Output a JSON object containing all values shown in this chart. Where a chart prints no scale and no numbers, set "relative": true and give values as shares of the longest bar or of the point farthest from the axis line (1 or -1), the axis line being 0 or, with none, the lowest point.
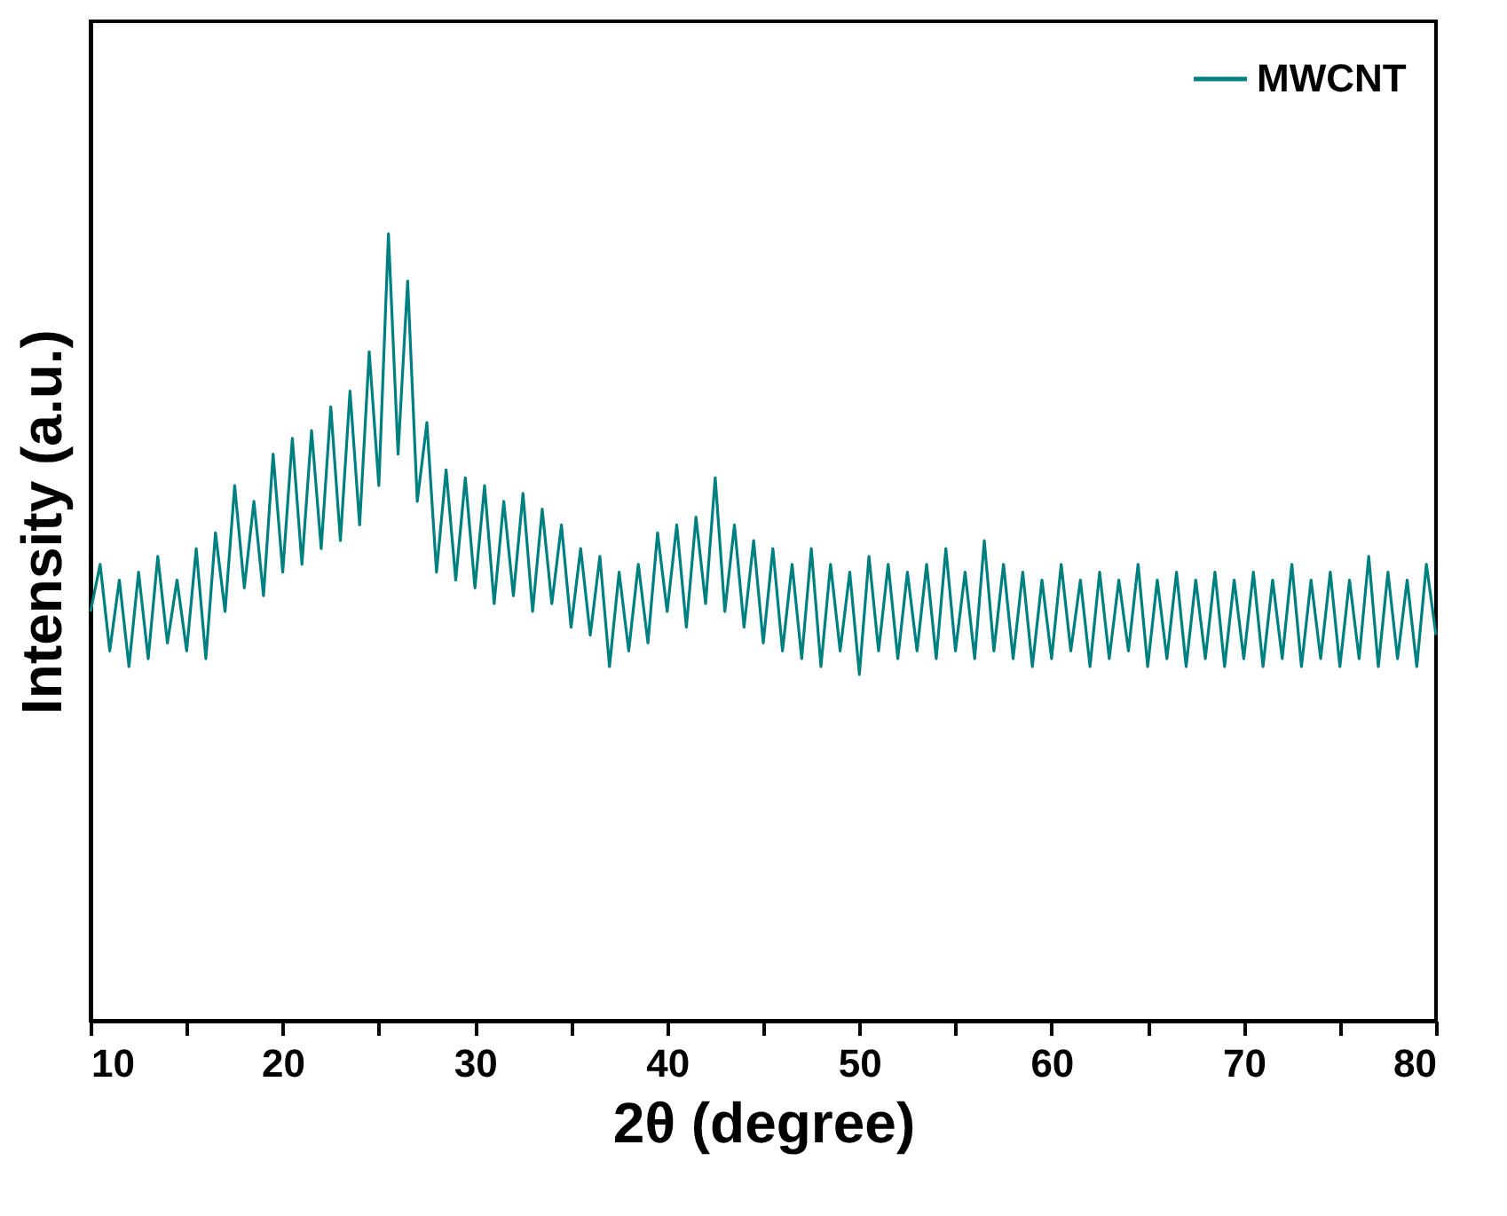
{
  "chart_data": {
    "type": "line",
    "relative": true,
    "xlabel": "2θ (degree)",
    "ylabel": "Intensity (a.u.)",
    "xlim": [
      10,
      80
    ],
    "xticks": [
      10,
      {
        "value": 15,
        "label": null
      },
      20,
      {
        "value": 25,
        "label": null
      },
      30,
      {
        "value": 35,
        "label": null
      },
      40,
      {
        "value": 45,
        "label": null
      },
      50,
      {
        "value": 55,
        "label": null
      },
      60,
      {
        "value": 65,
        "label": null
      },
      70,
      {
        "value": 75,
        "label": null
      },
      80
    ],
    "grid": false,
    "legend": "top right",
    "marker": "none",
    "line_style": "solid",
    "series": [
      {
        "name": "MWCNT",
        "color": "#008080",
        "x": [
          10,
          10.5,
          11,
          11.5,
          12,
          12.5,
          13,
          13.5,
          14,
          14.5,
          15,
          15.5,
          16,
          16.5,
          17,
          17.5,
          18,
          18.5,
          19,
          19.5,
          20,
          20.5,
          21,
          21.5,
          22,
          22.5,
          23,
          23.5,
          24,
          24.5,
          25,
          25.5,
          26,
          26.5,
          27,
          27.5,
          28,
          28.5,
          29,
          29.5,
          30,
          30.5,
          31,
          31.5,
          32,
          32.5,
          33,
          33.5,
          34,
          34.5,
          35,
          35.5,
          36,
          36.5,
          37,
          37.5,
          38,
          38.5,
          39,
          39.5,
          40,
          40.5,
          41,
          41.5,
          42,
          42.5,
          43,
          43.5,
          44,
          44.5,
          45,
          45.5,
          46,
          46.5,
          47,
          47.5,
          48,
          48.5,
          49,
          49.5,
          50,
          50.5,
          51,
          51.5,
          52,
          52.5,
          53,
          53.5,
          54,
          54.5,
          55,
          55.5,
          56,
          56.5,
          57,
          57.5,
          58,
          58.5,
          59,
          59.5,
          60,
          60.5,
          61,
          61.5,
          62,
          62.5,
          63,
          63.5,
          64,
          64.5,
          65,
          65.5,
          66,
          66.5,
          67,
          67.5,
          68,
          68.5,
          69,
          69.5,
          70,
          70.5,
          71,
          71.5,
          72,
          72.5,
          73,
          73.5,
          74,
          74.5,
          75,
          75.5,
          76,
          76.5,
          77,
          77.5,
          78,
          78.5,
          79,
          79.5,
          80
        ],
        "values": [
          0.52,
          0.58,
          0.47,
          0.56,
          0.45,
          0.57,
          0.46,
          0.59,
          0.48,
          0.56,
          0.47,
          0.6,
          0.46,
          0.62,
          0.52,
          0.68,
          0.55,
          0.66,
          0.54,
          0.72,
          0.57,
          0.74,
          0.58,
          0.75,
          0.6,
          0.78,
          0.61,
          0.8,
          0.63,
          0.85,
          0.68,
          1.0,
          0.72,
          0.94,
          0.66,
          0.76,
          0.57,
          0.7,
          0.56,
          0.69,
          0.55,
          0.68,
          0.53,
          0.66,
          0.54,
          0.67,
          0.52,
          0.65,
          0.53,
          0.63,
          0.5,
          0.6,
          0.49,
          0.59,
          0.45,
          0.57,
          0.47,
          0.58,
          0.48,
          0.62,
          0.52,
          0.63,
          0.5,
          0.64,
          0.53,
          0.69,
          0.52,
          0.63,
          0.5,
          0.61,
          0.48,
          0.6,
          0.47,
          0.58,
          0.46,
          0.6,
          0.45,
          0.58,
          0.47,
          0.57,
          0.44,
          0.59,
          0.47,
          0.58,
          0.46,
          0.57,
          0.47,
          0.58,
          0.46,
          0.6,
          0.47,
          0.57,
          0.46,
          0.61,
          0.47,
          0.58,
          0.46,
          0.57,
          0.45,
          0.56,
          0.46,
          0.58,
          0.47,
          0.56,
          0.45,
          0.57,
          0.46,
          0.56,
          0.47,
          0.58,
          0.45,
          0.56,
          0.46,
          0.57,
          0.45,
          0.56,
          0.46,
          0.57,
          0.45,
          0.56,
          0.46,
          0.57,
          0.45,
          0.56,
          0.46,
          0.58,
          0.45,
          0.56,
          0.46,
          0.57,
          0.45,
          0.56,
          0.46,
          0.59,
          0.45,
          0.57,
          0.46,
          0.56,
          0.45,
          0.58,
          0.49
        ]
      }
    ]
  }
}
